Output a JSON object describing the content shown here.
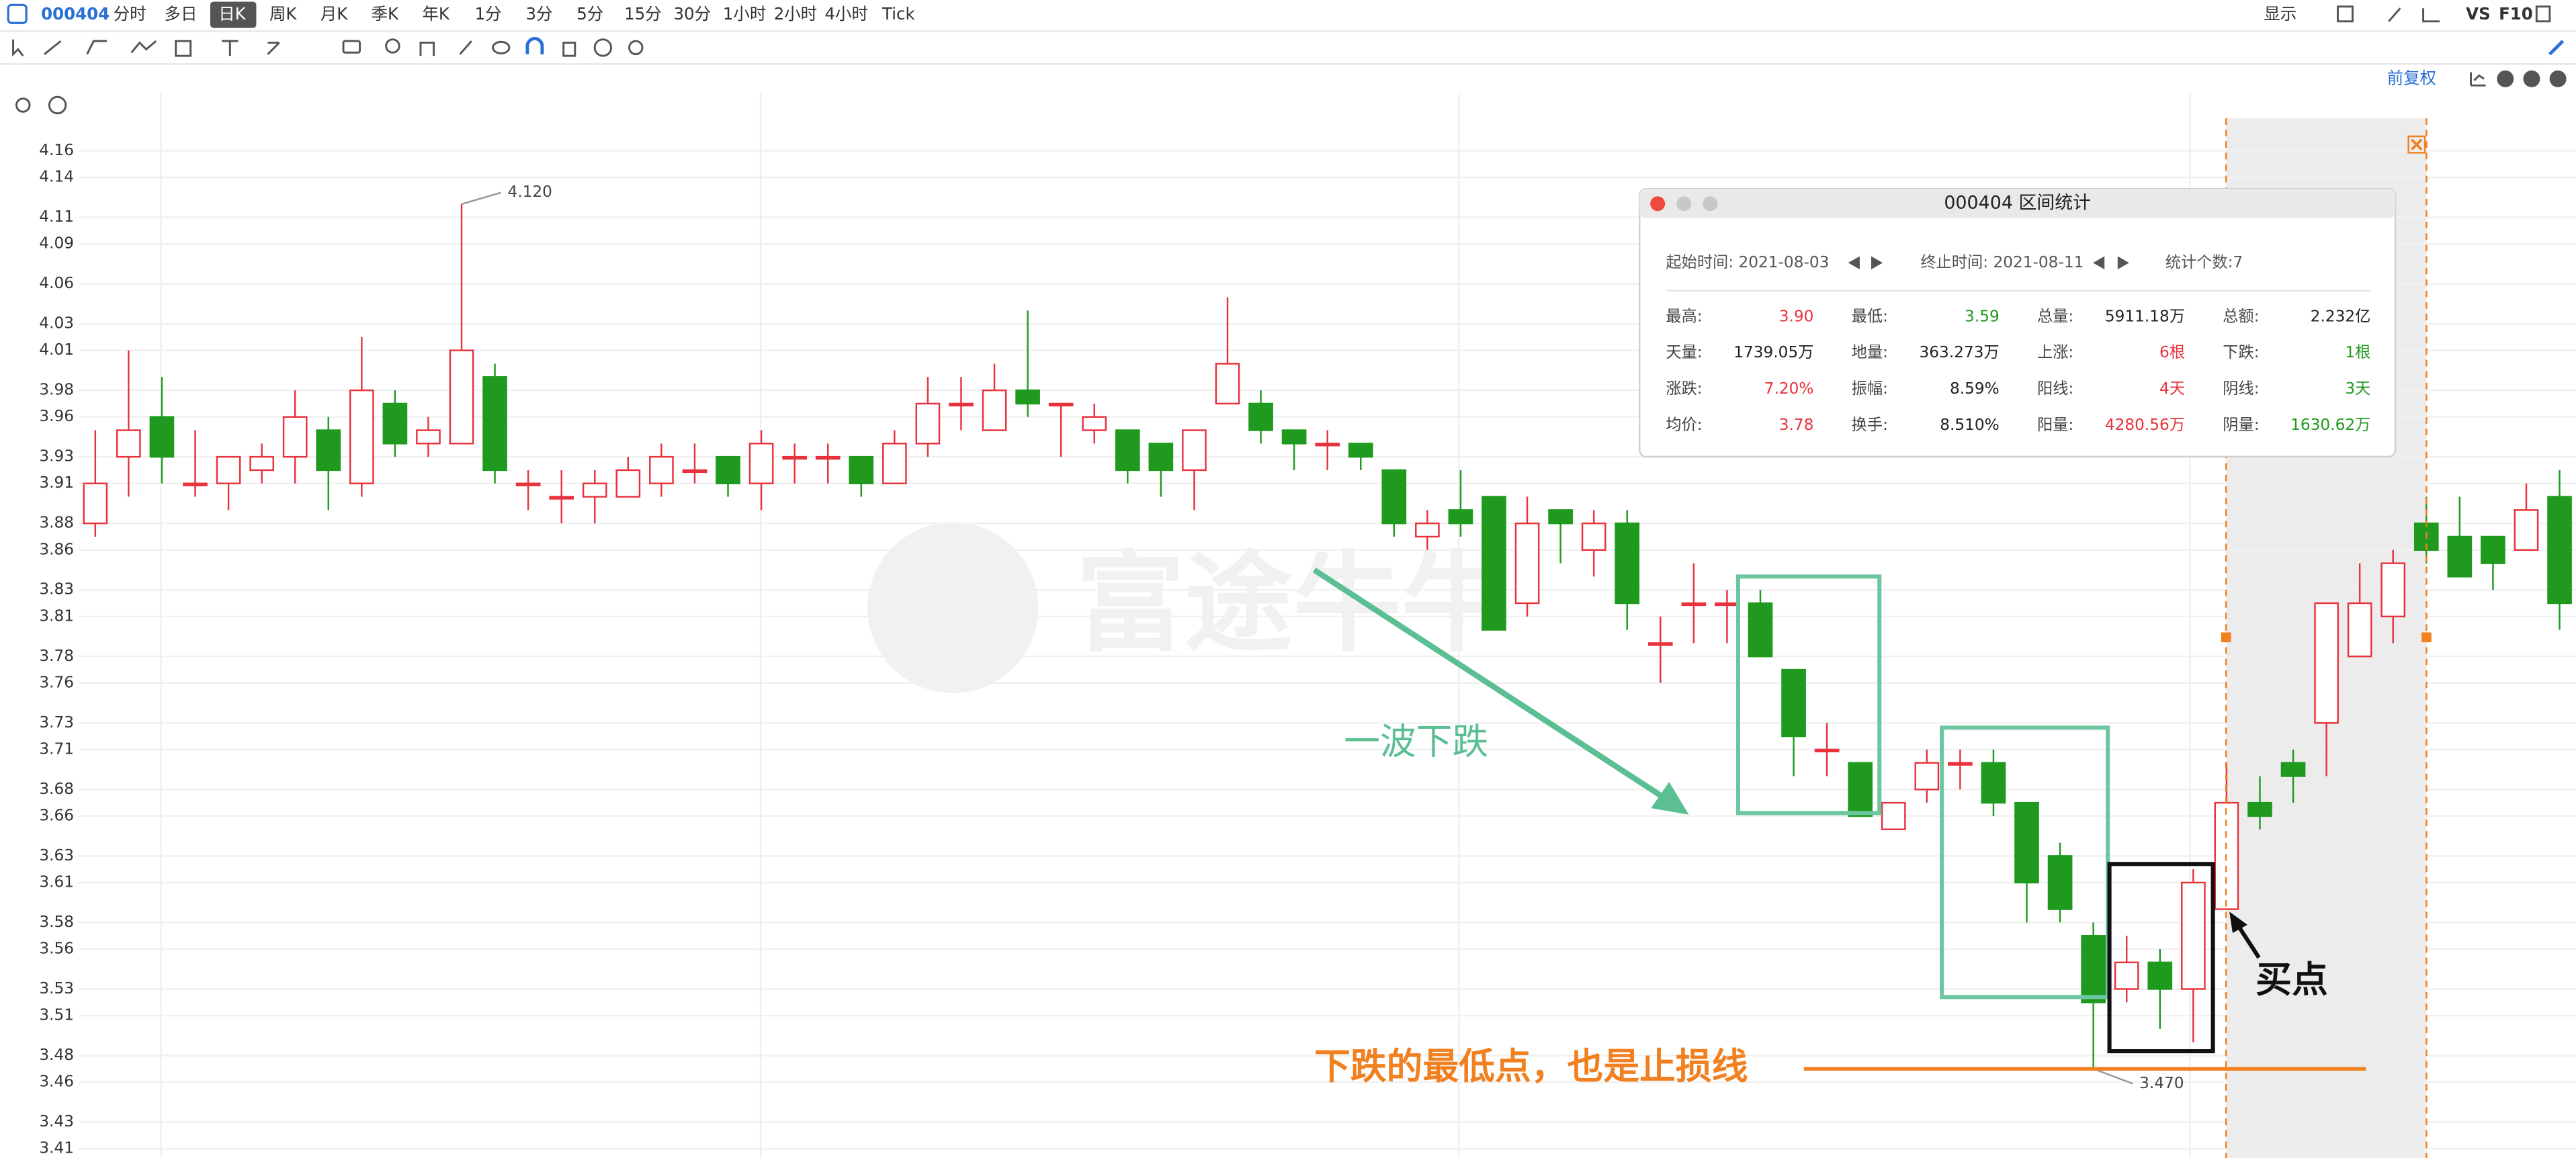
{
  "toolbar": {
    "symbol": "000404",
    "periods": [
      "分时",
      "多日",
      "日K",
      "周K",
      "月K",
      "季K",
      "年K",
      "1分",
      "3分",
      "5分",
      "15分",
      "30分",
      "1小时",
      "2小时",
      "4小时",
      "Tick"
    ],
    "active_period": 2,
    "right_items": [
      "显示",
      "VS",
      "F10"
    ],
    "adjust": "前复权"
  },
  "chart_data": {
    "type": "candlestick",
    "watermark": "富途牛牛",
    "ylim": [
      3.403,
      4.203
    ],
    "yticks": [
      4.16,
      4.14,
      4.11,
      4.09,
      4.06,
      4.03,
      4.01,
      3.98,
      3.96,
      3.93,
      3.91,
      3.88,
      3.86,
      3.83,
      3.81,
      3.78,
      3.76,
      3.73,
      3.71,
      3.68,
      3.66,
      3.63,
      3.61,
      3.58,
      3.56,
      3.53,
      3.51,
      3.48,
      3.46,
      3.43,
      3.41
    ],
    "up_color": "#e8323c",
    "down_color": "#1f9a1f",
    "grid": true,
    "open": [
      3.88,
      3.93,
      3.96,
      3.91,
      3.91,
      3.92,
      3.93,
      3.95,
      3.91,
      3.97,
      3.94,
      3.94,
      3.99,
      3.91,
      3.9,
      3.9,
      3.9,
      3.91,
      3.92,
      3.93,
      3.91,
      3.93,
      3.93,
      3.93,
      3.91,
      3.94,
      3.97,
      3.95,
      3.98,
      3.97,
      3.95,
      3.95,
      3.94,
      3.92,
      3.97,
      3.97,
      3.95,
      3.94,
      3.94,
      3.92,
      3.87,
      3.89,
      3.9,
      3.82,
      3.89,
      3.86,
      3.88,
      3.79,
      3.82,
      3.82,
      3.82,
      3.77,
      3.71,
      3.7,
      3.65,
      3.68,
      3.7,
      3.7,
      3.67,
      3.63,
      3.57,
      3.53,
      3.55,
      3.53,
      3.59,
      3.67,
      3.7,
      3.73,
      3.78,
      3.81,
      3.88,
      3.87,
      3.87,
      3.86,
      3.9
    ],
    "high": [
      3.95,
      4.01,
      3.99,
      3.95,
      3.93,
      3.94,
      3.98,
      3.96,
      4.02,
      3.98,
      3.96,
      4.12,
      4.0,
      3.92,
      3.92,
      3.92,
      3.93,
      3.94,
      3.94,
      3.93,
      3.95,
      3.94,
      3.94,
      3.93,
      3.95,
      3.99,
      3.99,
      4.0,
      4.04,
      3.97,
      3.97,
      3.95,
      3.94,
      3.95,
      4.05,
      3.98,
      3.95,
      3.95,
      3.94,
      3.92,
      3.89,
      3.92,
      3.9,
      3.9,
      3.89,
      3.89,
      3.89,
      3.81,
      3.85,
      3.83,
      3.83,
      3.77,
      3.73,
      3.7,
      3.67,
      3.71,
      3.71,
      3.71,
      3.67,
      3.64,
      3.58,
      3.57,
      3.56,
      3.62,
      3.7,
      3.69,
      3.71,
      3.82,
      3.85,
      3.86,
      3.9,
      3.9,
      3.87,
      3.91,
      3.92
    ],
    "low": [
      3.87,
      3.9,
      3.91,
      3.9,
      3.89,
      3.91,
      3.91,
      3.89,
      3.9,
      3.93,
      3.93,
      3.94,
      3.91,
      3.89,
      3.88,
      3.88,
      3.9,
      3.9,
      3.91,
      3.9,
      3.89,
      3.91,
      3.91,
      3.9,
      3.91,
      3.93,
      3.95,
      3.95,
      3.96,
      3.93,
      3.94,
      3.91,
      3.9,
      3.89,
      3.97,
      3.94,
      3.92,
      3.92,
      3.92,
      3.87,
      3.86,
      3.87,
      3.8,
      3.81,
      3.85,
      3.84,
      3.8,
      3.76,
      3.79,
      3.79,
      3.78,
      3.69,
      3.69,
      3.66,
      3.65,
      3.67,
      3.68,
      3.66,
      3.58,
      3.58,
      3.47,
      3.52,
      3.5,
      3.49,
      3.59,
      3.65,
      3.67,
      3.69,
      3.78,
      3.79,
      3.85,
      3.84,
      3.83,
      3.86,
      3.8
    ],
    "close": [
      3.91,
      3.95,
      3.93,
      3.91,
      3.93,
      3.93,
      3.96,
      3.92,
      3.98,
      3.94,
      3.95,
      4.01,
      3.92,
      3.91,
      3.9,
      3.91,
      3.92,
      3.93,
      3.92,
      3.91,
      3.94,
      3.93,
      3.93,
      3.91,
      3.94,
      3.97,
      3.97,
      3.98,
      3.97,
      3.97,
      3.96,
      3.92,
      3.92,
      3.95,
      4.0,
      3.95,
      3.94,
      3.94,
      3.93,
      3.88,
      3.88,
      3.88,
      3.8,
      3.88,
      3.88,
      3.88,
      3.82,
      3.79,
      3.82,
      3.82,
      3.78,
      3.72,
      3.71,
      3.66,
      3.67,
      3.7,
      3.7,
      3.67,
      3.61,
      3.59,
      3.52,
      3.55,
      3.53,
      3.61,
      3.67,
      3.66,
      3.69,
      3.82,
      3.82,
      3.85,
      3.86,
      3.84,
      3.85,
      3.89,
      3.82
    ],
    "price_labels": [
      {
        "value": 4.12,
        "label": "4.120"
      },
      {
        "value": 3.47,
        "label": "3.470"
      }
    ],
    "notes": [
      "一波下跌",
      "买点",
      "下跌的最低点，也是止损线"
    ]
  },
  "stats_panel": {
    "title": "000404 区间统计",
    "start": "起始时间: 2021-08-03",
    "end": "终止时间: 2021-08-11",
    "count": "统计个数:7",
    "rows": [
      [
        {
          "label": "最高:",
          "value": "3.90",
          "color": "#e8323c"
        },
        {
          "label": "最低:",
          "value": "3.59",
          "color": "#1f9a1f"
        },
        {
          "label": "总量:",
          "value": "5911.18万",
          "color": "#222222"
        },
        {
          "label": "总额:",
          "value": "2.232亿",
          "color": "#222222"
        }
      ],
      [
        {
          "label": "天量:",
          "value": "1739.05万",
          "color": "#222222"
        },
        {
          "label": "地量:",
          "value": "363.273万",
          "color": "#222222"
        },
        {
          "label": "上涨:",
          "value": "6根",
          "color": "#e8323c"
        },
        {
          "label": "下跌:",
          "value": "1根",
          "color": "#1f9a1f"
        }
      ],
      [
        {
          "label": "涨跌:",
          "value": "7.20%",
          "color": "#e8323c"
        },
        {
          "label": "振幅:",
          "value": "8.59%",
          "color": "#222222"
        },
        {
          "label": "阳线:",
          "value": "4天",
          "color": "#e8323c"
        },
        {
          "label": "阴线:",
          "value": "3天",
          "color": "#1f9a1f"
        }
      ],
      [
        {
          "label": "均价:",
          "value": "3.78",
          "color": "#e8323c"
        },
        {
          "label": "换手:",
          "value": "8.510%",
          "color": "#222222"
        },
        {
          "label": "阳量:",
          "value": "4280.56万",
          "color": "#e8323c"
        },
        {
          "label": "阴量:",
          "value": "1630.62万",
          "color": "#1f9a1f"
        }
      ]
    ]
  }
}
